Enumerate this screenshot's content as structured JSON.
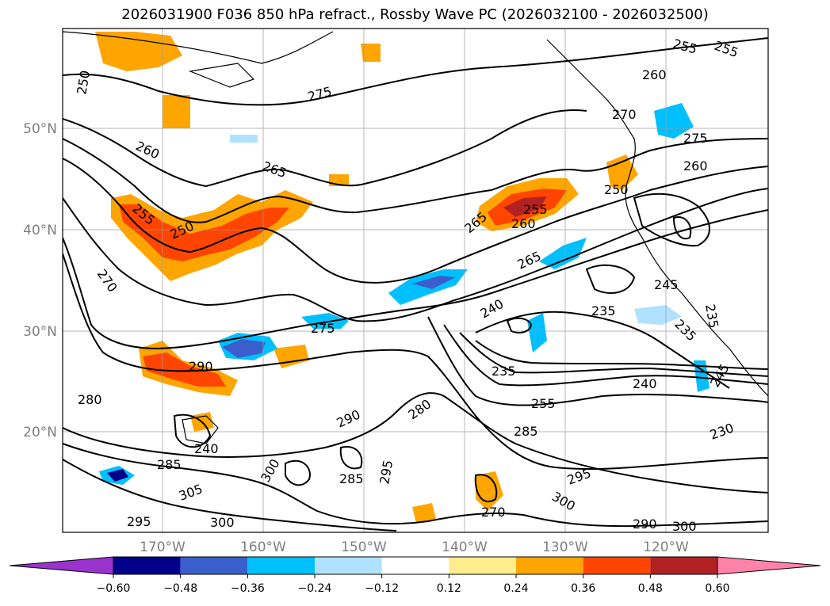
{
  "title": "2026031900 F036 850 hPa refract., Rossby Wave PC (2026032100 - 2026032500)",
  "lat_labels": [
    "50°N",
    "40°N",
    "30°N",
    "20°N"
  ],
  "lon_labels": [
    "170°W",
    "160°W",
    "150°W",
    "140°W",
    "130°W",
    "120°W"
  ],
  "contour_labels": [
    "250",
    "260",
    "265",
    "255",
    "250",
    "270",
    "275",
    "290",
    "280",
    "285",
    "305",
    "295",
    "300",
    "290",
    "285",
    "295",
    "300",
    "280",
    "285",
    "295",
    "300",
    "270",
    "290",
    "300",
    "255",
    "240",
    "235",
    "235",
    "240",
    "230",
    "265",
    "260",
    "255",
    "265",
    "270",
    "275",
    "260",
    "275",
    "255",
    "245",
    "235",
    "235",
    "245",
    "260",
    "255",
    "250",
    "240"
  ],
  "colorbar": {
    "ticks": [
      "−0.60",
      "−0.48",
      "−0.36",
      "−0.24",
      "−0.12",
      "0.12",
      "0.24",
      "0.36",
      "0.48",
      "0.60"
    ],
    "colors": [
      "#9a32cd",
      "#00008b",
      "#3a5fcd",
      "#00bfff",
      "#b0e2ff",
      "#ffffff",
      "#ffec8b",
      "#ffa500",
      "#ff4500",
      "#b22222",
      "#ff82ab"
    ]
  }
}
